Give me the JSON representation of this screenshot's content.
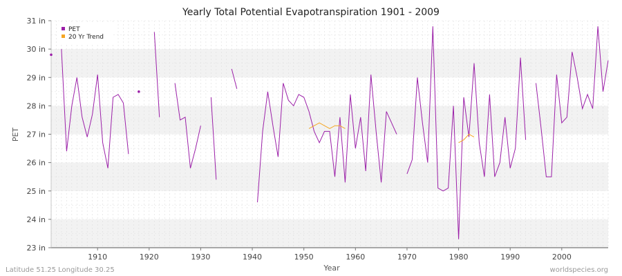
{
  "chart_data": {
    "type": "line",
    "title": "Yearly Total Potential Evapotranspiration 1901 - 2009",
    "xlabel": "Year",
    "ylabel": "PET",
    "xlim": [
      1901,
      2009
    ],
    "ylim": [
      23,
      31
    ],
    "x_ticks": [
      1910,
      1920,
      1930,
      1940,
      1950,
      1960,
      1970,
      1980,
      1990,
      2000
    ],
    "y_ticks": [
      {
        "value": 23,
        "label": "23 in"
      },
      {
        "value": 24,
        "label": "24 in"
      },
      {
        "value": 25,
        "label": "25 in"
      },
      {
        "value": 26,
        "label": "26 in"
      },
      {
        "value": 27,
        "label": "27 in"
      },
      {
        "value": 28,
        "label": "28 in"
      },
      {
        "value": 29,
        "label": "29 in"
      },
      {
        "value": 30,
        "label": "30 in"
      },
      {
        "value": 31,
        "label": "31 in"
      }
    ],
    "grid": true,
    "legend": {
      "placement": "top-left",
      "entries": [
        {
          "name": "PET",
          "color": "#9b1fa8"
        },
        {
          "name": "20 Yr Trend",
          "color": "#f5a623"
        }
      ]
    },
    "series": [
      {
        "name": "PET",
        "color": "#9b1fa8",
        "points": [
          [
            1901,
            29.8
          ],
          [
            1902,
            null
          ],
          [
            1903,
            30.0
          ],
          [
            1904,
            26.4
          ],
          [
            1905,
            28.0
          ],
          [
            1906,
            29.0
          ],
          [
            1907,
            27.6
          ],
          [
            1908,
            26.9
          ],
          [
            1909,
            27.7
          ],
          [
            1910,
            29.1
          ],
          [
            1911,
            26.7
          ],
          [
            1912,
            25.8
          ],
          [
            1913,
            28.3
          ],
          [
            1914,
            28.4
          ],
          [
            1915,
            28.1
          ],
          [
            1916,
            26.3
          ],
          [
            1917,
            null
          ],
          [
            1918,
            28.5
          ],
          [
            1919,
            null
          ],
          [
            1920,
            null
          ],
          [
            1921,
            30.6
          ],
          [
            1922,
            27.6
          ],
          [
            1923,
            null
          ],
          [
            1924,
            null
          ],
          [
            1925,
            28.8
          ],
          [
            1926,
            27.5
          ],
          [
            1927,
            27.6
          ],
          [
            1928,
            25.8
          ],
          [
            1929,
            26.5
          ],
          [
            1930,
            27.3
          ],
          [
            1931,
            null
          ],
          [
            1932,
            28.3
          ],
          [
            1933,
            25.4
          ],
          [
            1934,
            null
          ],
          [
            1935,
            null
          ],
          [
            1936,
            29.3
          ],
          [
            1937,
            28.6
          ],
          [
            1938,
            null
          ],
          [
            1939,
            null
          ],
          [
            1940,
            null
          ],
          [
            1941,
            24.6
          ],
          [
            1942,
            27.1
          ],
          [
            1943,
            28.5
          ],
          [
            1944,
            27.3
          ],
          [
            1945,
            26.2
          ],
          [
            1946,
            28.8
          ],
          [
            1947,
            28.2
          ],
          [
            1948,
            28.0
          ],
          [
            1949,
            28.4
          ],
          [
            1950,
            28.3
          ],
          [
            1951,
            27.8
          ],
          [
            1952,
            27.1
          ],
          [
            1953,
            26.7
          ],
          [
            1954,
            27.1
          ],
          [
            1955,
            27.1
          ],
          [
            1956,
            25.5
          ],
          [
            1957,
            27.6
          ],
          [
            1958,
            25.3
          ],
          [
            1959,
            28.4
          ],
          [
            1960,
            26.5
          ],
          [
            1961,
            27.6
          ],
          [
            1962,
            25.7
          ],
          [
            1963,
            29.1
          ],
          [
            1964,
            27.1
          ],
          [
            1965,
            25.3
          ],
          [
            1966,
            27.8
          ],
          [
            1967,
            27.4
          ],
          [
            1968,
            27.0
          ],
          [
            1969,
            null
          ],
          [
            1970,
            25.6
          ],
          [
            1971,
            26.1
          ],
          [
            1972,
            29.0
          ],
          [
            1973,
            27.4
          ],
          [
            1974,
            26.0
          ],
          [
            1975,
            30.8
          ],
          [
            1976,
            25.1
          ],
          [
            1977,
            25.0
          ],
          [
            1978,
            25.1
          ],
          [
            1979,
            28.0
          ],
          [
            1980,
            23.3
          ],
          [
            1981,
            28.3
          ],
          [
            1982,
            26.9
          ],
          [
            1983,
            29.5
          ],
          [
            1984,
            26.7
          ],
          [
            1985,
            25.5
          ],
          [
            1986,
            28.4
          ],
          [
            1987,
            25.5
          ],
          [
            1988,
            26.0
          ],
          [
            1989,
            27.6
          ],
          [
            1990,
            25.8
          ],
          [
            1991,
            26.5
          ],
          [
            1992,
            29.7
          ],
          [
            1993,
            26.8
          ],
          [
            1994,
            null
          ],
          [
            1995,
            28.8
          ],
          [
            1996,
            27.2
          ],
          [
            1997,
            25.5
          ],
          [
            1998,
            25.5
          ],
          [
            1999,
            29.1
          ],
          [
            2000,
            27.4
          ],
          [
            2001,
            27.6
          ],
          [
            2002,
            29.9
          ],
          [
            2003,
            29.0
          ],
          [
            2004,
            27.9
          ],
          [
            2005,
            28.4
          ],
          [
            2006,
            27.9
          ],
          [
            2007,
            30.8
          ],
          [
            2008,
            28.5
          ],
          [
            2009,
            29.6
          ]
        ]
      },
      {
        "name": "20 Yr Trend",
        "color": "#f5a623",
        "segments": [
          [
            [
              1951,
              27.2
            ],
            [
              1952,
              27.3
            ],
            [
              1953,
              27.4
            ],
            [
              1954,
              27.3
            ],
            [
              1955,
              27.2
            ],
            [
              1956,
              27.3
            ],
            [
              1957,
              27.3
            ],
            [
              1958,
              27.2
            ]
          ],
          [
            [
              1980,
              26.7
            ],
            [
              1981,
              26.8
            ],
            [
              1982,
              27.0
            ],
            [
              1983,
              26.9
            ]
          ]
        ]
      }
    ]
  },
  "footer": {
    "left": "Latitude 51.25 Longitude 30.25",
    "right": "worldspecies.org"
  }
}
